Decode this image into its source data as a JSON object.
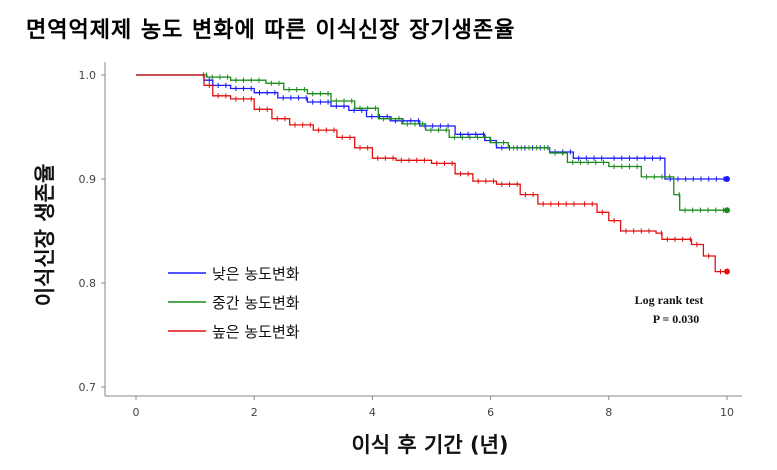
{
  "title": "면역억제제 농도 변화에 따른 이식신장 장기생존율",
  "chart_data": {
    "type": "line",
    "title": "면역억제제 농도 변화에 따른 이식신장 장기생존율",
    "xlabel": "이식 후 기간 (년)",
    "ylabel": "이식신장 생존율",
    "xlim": [
      0,
      10
    ],
    "ylim": [
      0.7,
      1.0
    ],
    "x_ticks": [
      "0",
      "2",
      "4",
      "6",
      "8",
      "10"
    ],
    "y_ticks": [
      "0.7",
      "0.8",
      "0.9",
      "1.0"
    ],
    "legend_position": "lower-left",
    "annotation": [
      "Log rank test",
      "P = 0.030"
    ],
    "series": [
      {
        "name": "낮은 농도변화",
        "color": "#1a1aff",
        "points": [
          [
            0,
            1.0
          ],
          [
            1.1,
            1.0
          ],
          [
            1.15,
            0.995
          ],
          [
            1.3,
            0.99
          ],
          [
            1.6,
            0.987
          ],
          [
            2.0,
            0.983
          ],
          [
            2.4,
            0.978
          ],
          [
            2.9,
            0.974
          ],
          [
            3.3,
            0.97
          ],
          [
            3.6,
            0.966
          ],
          [
            3.9,
            0.96
          ],
          [
            4.3,
            0.956
          ],
          [
            4.8,
            0.951
          ],
          [
            5.4,
            0.943
          ],
          [
            5.9,
            0.937
          ],
          [
            6.1,
            0.93
          ],
          [
            7.0,
            0.926
          ],
          [
            7.4,
            0.92
          ],
          [
            8.0,
            0.92
          ],
          [
            8.9,
            0.92
          ],
          [
            8.95,
            0.9
          ],
          [
            10.0,
            0.9
          ]
        ]
      },
      {
        "name": "중간 농도변화",
        "color": "#1a8c1a",
        "points": [
          [
            0,
            1.0
          ],
          [
            1.1,
            1.0
          ],
          [
            1.2,
            0.998
          ],
          [
            1.6,
            0.995
          ],
          [
            2.2,
            0.992
          ],
          [
            2.5,
            0.986
          ],
          [
            2.9,
            0.982
          ],
          [
            3.3,
            0.975
          ],
          [
            3.7,
            0.968
          ],
          [
            4.1,
            0.958
          ],
          [
            4.5,
            0.953
          ],
          [
            4.9,
            0.947
          ],
          [
            5.3,
            0.94
          ],
          [
            6.0,
            0.935
          ],
          [
            6.3,
            0.93
          ],
          [
            7.0,
            0.925
          ],
          [
            7.3,
            0.916
          ],
          [
            8.0,
            0.912
          ],
          [
            8.5,
            0.912
          ],
          [
            8.55,
            0.902
          ],
          [
            9.1,
            0.885
          ],
          [
            9.2,
            0.87
          ],
          [
            10.0,
            0.87
          ]
        ]
      },
      {
        "name": "높은 농도변화",
        "color": "#e01010",
        "points": [
          [
            0,
            1.0
          ],
          [
            1.05,
            1.0
          ],
          [
            1.15,
            0.99
          ],
          [
            1.3,
            0.98
          ],
          [
            1.6,
            0.977
          ],
          [
            2.0,
            0.967
          ],
          [
            2.3,
            0.958
          ],
          [
            2.6,
            0.952
          ],
          [
            3.0,
            0.947
          ],
          [
            3.4,
            0.94
          ],
          [
            3.7,
            0.93
          ],
          [
            4.0,
            0.92
          ],
          [
            4.4,
            0.918
          ],
          [
            5.0,
            0.915
          ],
          [
            5.4,
            0.905
          ],
          [
            5.7,
            0.898
          ],
          [
            6.1,
            0.895
          ],
          [
            6.5,
            0.885
          ],
          [
            6.8,
            0.876
          ],
          [
            7.5,
            0.876
          ],
          [
            7.8,
            0.868
          ],
          [
            8.0,
            0.86
          ],
          [
            8.2,
            0.85
          ],
          [
            8.8,
            0.848
          ],
          [
            8.9,
            0.842
          ],
          [
            9.4,
            0.837
          ],
          [
            9.6,
            0.826
          ],
          [
            9.8,
            0.811
          ],
          [
            10.0,
            0.811
          ]
        ]
      }
    ]
  }
}
